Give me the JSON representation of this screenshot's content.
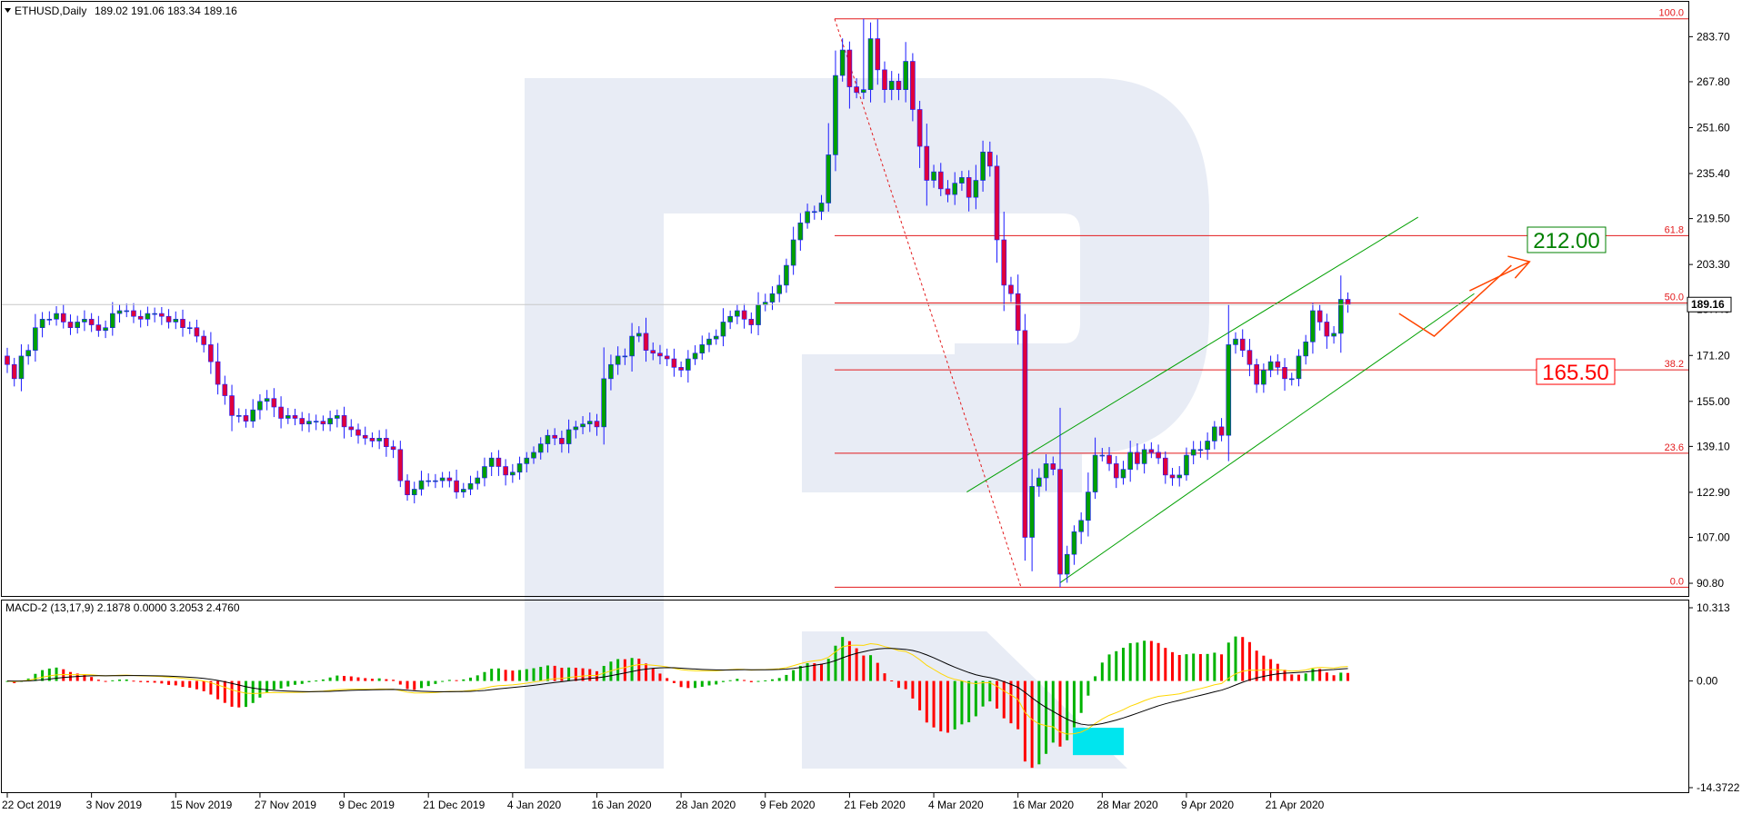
{
  "header": {
    "symbol": "ETHUSD,Daily",
    "ohlc": "189.02 191.06 183.34 189.16"
  },
  "chart_data": [
    {
      "type": "candlestick",
      "symbol": "ETHUSD",
      "timeframe": "Daily",
      "y_ticks": [
        283.7,
        267.8,
        251.6,
        235.4,
        219.5,
        203.3,
        187.4,
        171.2,
        155.0,
        139.1,
        122.9,
        107.0,
        90.8
      ],
      "y_tick_labels": [
        "283.70",
        "267.80",
        "251.60",
        "235.40",
        "219.50",
        "203.30",
        "187.40",
        "171.20",
        "155.00",
        "139.10",
        "122.90",
        "107.00",
        "90.80"
      ],
      "ylim": [
        86,
        296
      ],
      "x_tick_labels": [
        "22 Oct 2019",
        "3 Nov 2019",
        "15 Nov 2019",
        "27 Nov 2019",
        "9 Dec 2019",
        "21 Dec 2019",
        "4 Jan 2020",
        "16 Jan 2020",
        "28 Jan 2020",
        "9 Feb 2020",
        "21 Feb 2020",
        "4 Mar 2020",
        "16 Mar 2020",
        "28 Mar 2020",
        "9 Apr 2020",
        "21 Apr 2020"
      ],
      "last_price": 189.16,
      "last_price_label": "189.16",
      "close_series": [
        168,
        163,
        171,
        173,
        181,
        184,
        184,
        186,
        183,
        181,
        183,
        184,
        182,
        180,
        181,
        186,
        187,
        187,
        185,
        184,
        186,
        186,
        185,
        183,
        184,
        181,
        181,
        178,
        175,
        169,
        161,
        157,
        150,
        150,
        148,
        152,
        155,
        156,
        153,
        149,
        150,
        149,
        147,
        148,
        148,
        147,
        149,
        150,
        146,
        145,
        143,
        142,
        141,
        142,
        139,
        138,
        127,
        122,
        124,
        127,
        127,
        127,
        128,
        127,
        123,
        124,
        126,
        128,
        132,
        135,
        132,
        129,
        130,
        133,
        135,
        137,
        140,
        143,
        142,
        140,
        145,
        146,
        147,
        148,
        146,
        163,
        168,
        171,
        171,
        178,
        179,
        173,
        172,
        171,
        170,
        167,
        166,
        170,
        172,
        175,
        177,
        178,
        183,
        185,
        187,
        184,
        182,
        189,
        190,
        193,
        196,
        203,
        212,
        218,
        222,
        222,
        225,
        242,
        270,
        279,
        266,
        264,
        265,
        283,
        272,
        265,
        268,
        265,
        275,
        258,
        245,
        233,
        236,
        230,
        228,
        232,
        234,
        227,
        233,
        243,
        238,
        212,
        196,
        193,
        180,
        107,
        125,
        128,
        133,
        131,
        94,
        101,
        109,
        113,
        123,
        136,
        136,
        133,
        128,
        131,
        137,
        133,
        138,
        137,
        135,
        129,
        128,
        129,
        136,
        138,
        138,
        141,
        146,
        143,
        175,
        177,
        173,
        168,
        161,
        166,
        169,
        167,
        163,
        163,
        171,
        176,
        187,
        183,
        178,
        179,
        191,
        189.16
      ],
      "fibonacci": {
        "levels": [
          {
            "label": "100.0",
            "value": 290.0
          },
          {
            "label": "61.8",
            "value": 213.5
          },
          {
            "label": "50.0",
            "value": 189.7
          },
          {
            "label": "38.2",
            "value": 166.1
          },
          {
            "label": "23.6",
            "value": 136.7
          },
          {
            "label": "0.0",
            "value": 89.4
          }
        ]
      },
      "annotations": [
        {
          "text": "212.00",
          "value": 212.0,
          "color": "#008000"
        },
        {
          "text": "165.50",
          "value": 165.5,
          "color": "#ff0000"
        }
      ],
      "channel": {
        "lower": [
          {
            "bar": 150,
            "value": 91
          },
          {
            "bar": 209,
            "value": 193
          }
        ],
        "upper": [
          {
            "bar": 138,
            "value": 123
          },
          {
            "bar": 201,
            "value": 220
          }
        ]
      },
      "forecast": [
        {
          "bar": 197,
          "value": 186
        },
        {
          "bar": 202,
          "value": 178
        },
        {
          "bar": 213,
          "value": 203
        }
      ]
    },
    {
      "type": "macd",
      "title": "MACD-2 (13,17,9) 2.1878 0.0000 3.2053 2.4760",
      "y_tick_labels": [
        "10.313",
        "0.00",
        "-14.3722"
      ],
      "y_ticks": [
        10.313,
        0.0,
        -14.3722
      ],
      "ylim": [
        -14.3722,
        10.313
      ],
      "colors": {
        "up": "#00b300",
        "down": "#ff0000",
        "macd": "#000000",
        "signal": "#ffd700",
        "highlight": "#00e5ee"
      }
    }
  ]
}
